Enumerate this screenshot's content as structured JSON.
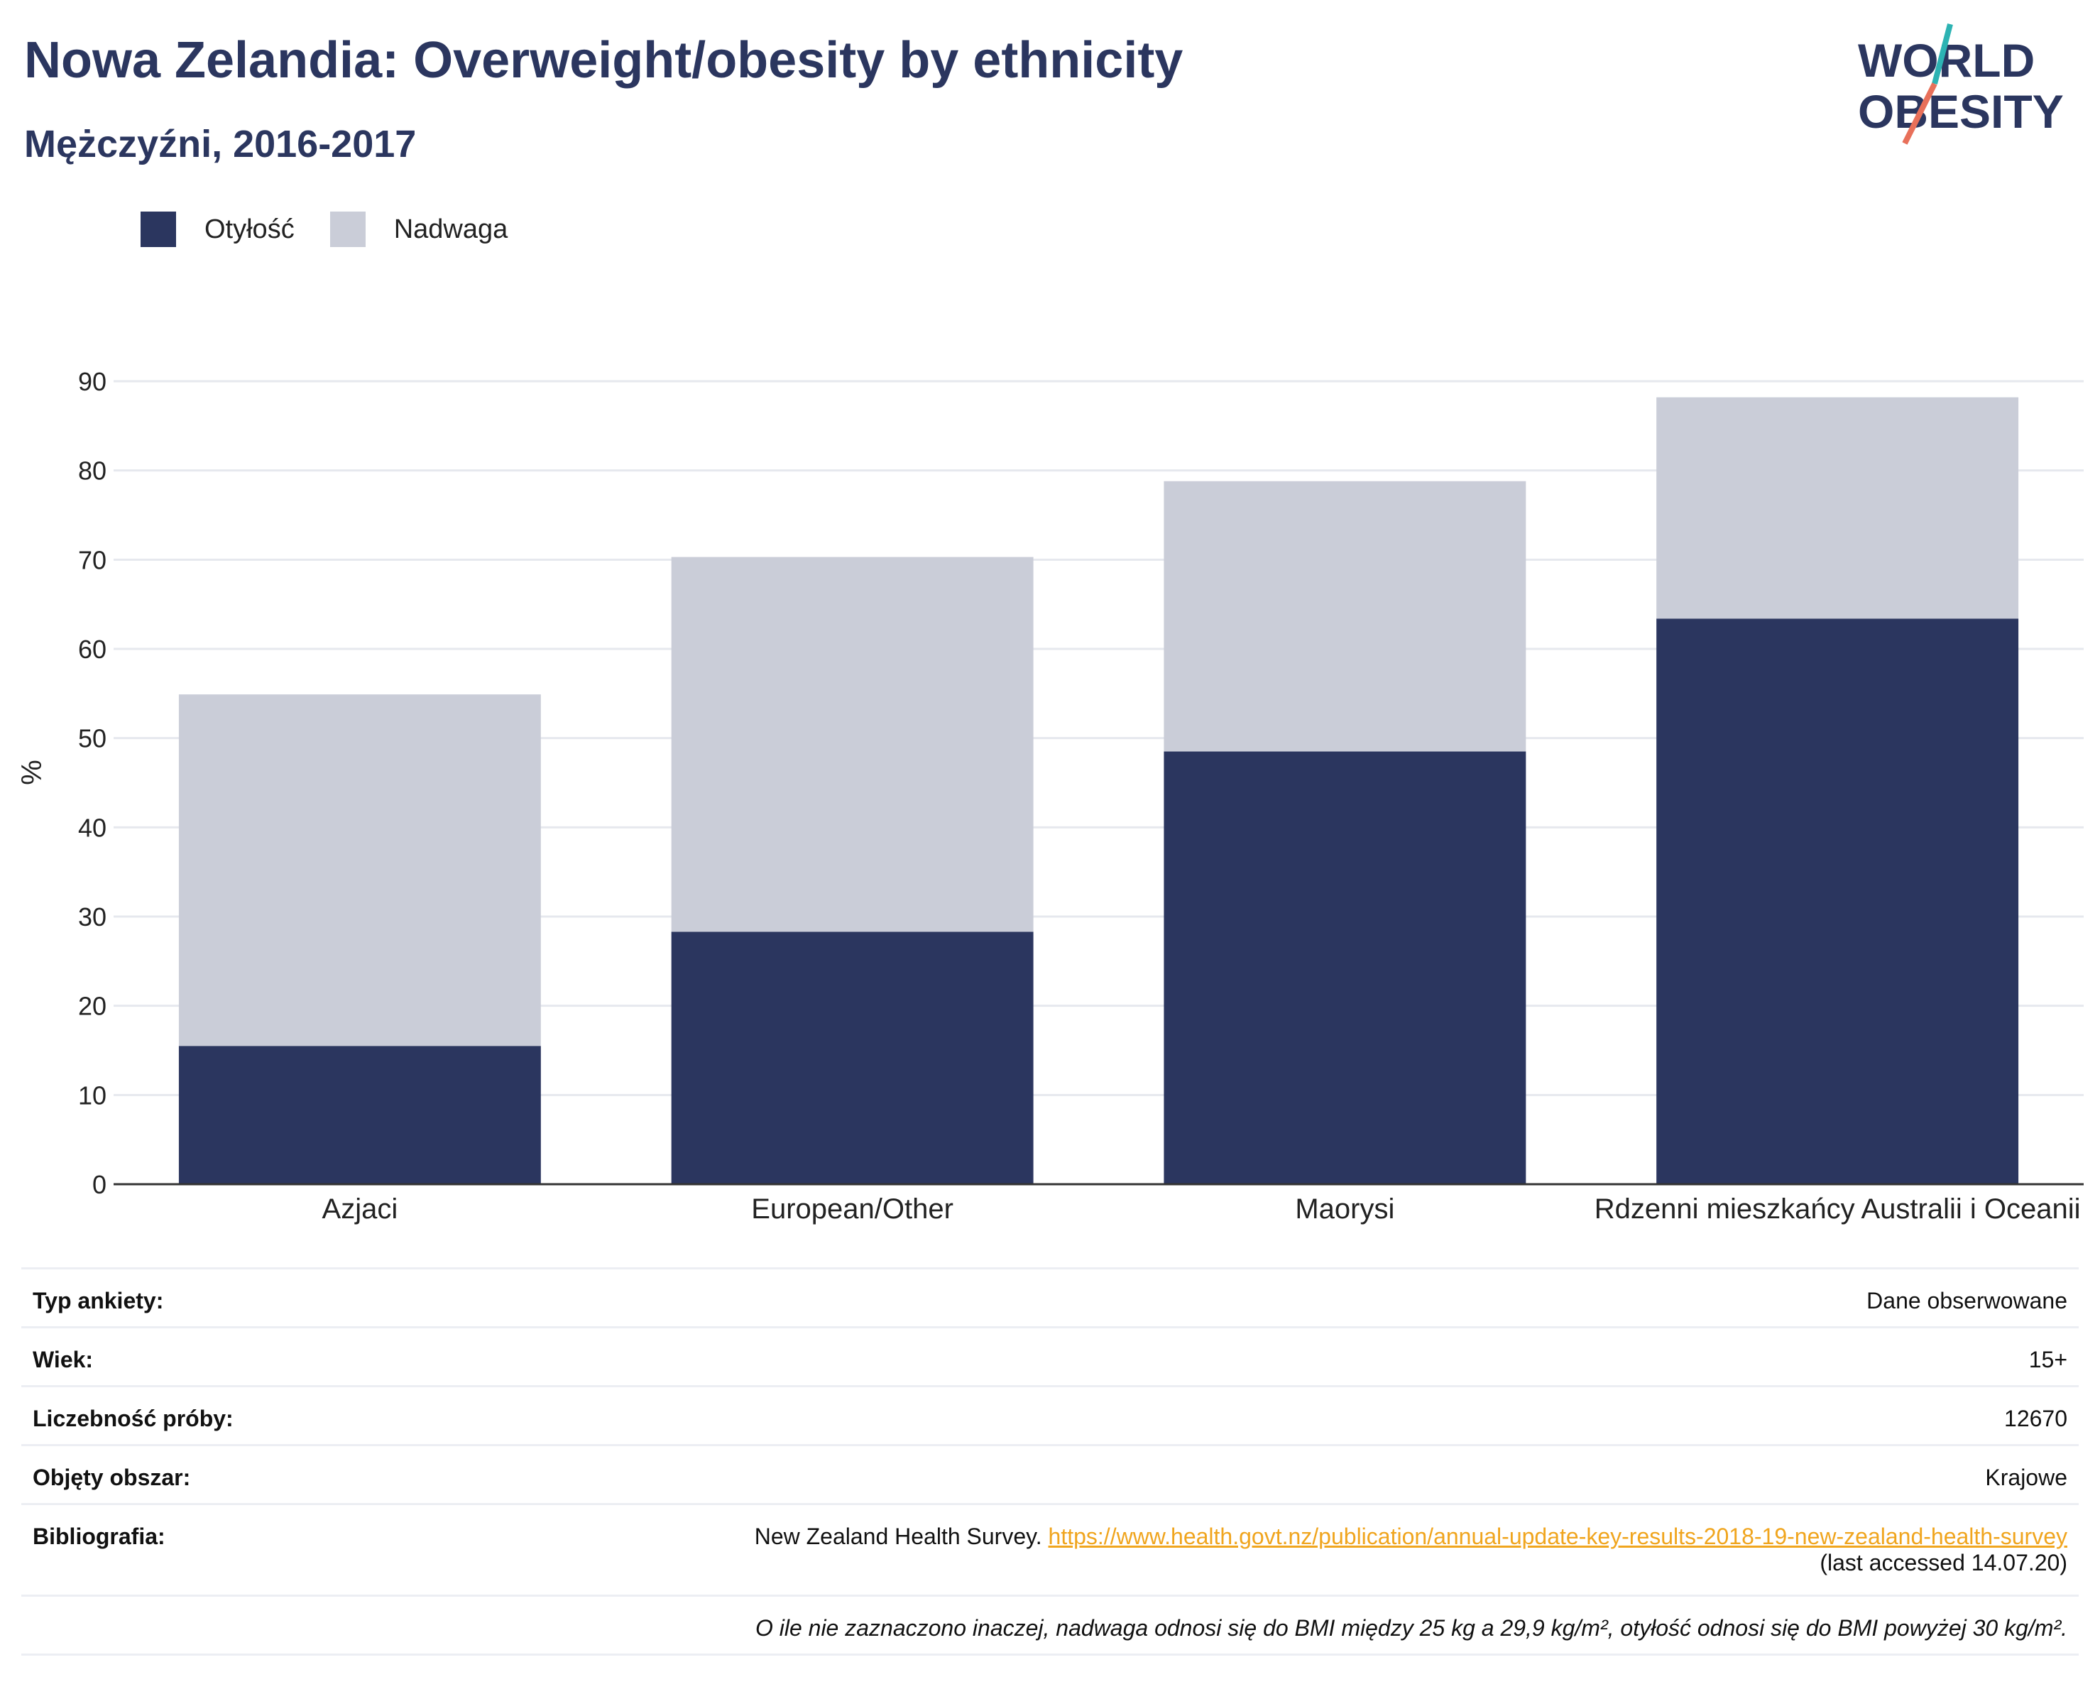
{
  "title": "Nowa Zelandia: Overweight/obesity by ethnicity",
  "subtitle": "Mężczyźni, 2016-2017",
  "logo": {
    "line1": "WORLD",
    "line2": "OBESITY"
  },
  "colors": {
    "obesity": "#2b365f",
    "overweight": "#cacdd8",
    "title": "#2b365f",
    "link": "#f0a51e"
  },
  "legend": {
    "obesity_label": "Otyłość",
    "overweight_label": "Nadwaga"
  },
  "chart_data": {
    "type": "bar",
    "stacked": true,
    "categories": [
      "Azjaci",
      "European/Other",
      "Maorysi",
      "Rdzenni mieszkańcy Australii i Oceanii"
    ],
    "series": [
      {
        "name": "Otyłość",
        "values": [
          15.5,
          28.3,
          48.5,
          63.4
        ]
      },
      {
        "name": "Nadwaga",
        "values": [
          39.4,
          42.0,
          30.3,
          24.8
        ]
      }
    ],
    "ylabel": "%",
    "ylim": [
      0,
      90
    ],
    "yticks": [
      0,
      10,
      20,
      30,
      40,
      50,
      60,
      70,
      80,
      90
    ],
    "grid": true,
    "legend_position": "top-left"
  },
  "meta": {
    "survey_type": {
      "label": "Typ ankiety:",
      "value": "Dane obserwowane"
    },
    "age": {
      "label": "Wiek:",
      "value": "15+"
    },
    "sample_size": {
      "label": "Liczebność próby:",
      "value": "12670"
    },
    "coverage": {
      "label": "Objęty obszar:",
      "value": "Krajowe"
    },
    "bibliography": {
      "label": "Bibliografia:",
      "source": "New Zealand Health Survey.",
      "url": "https://www.health.govt.nz/publication/annual-update-key-results-2018-19-new-zealand-health-survey",
      "accessed": "(last accessed 14.07.20)"
    },
    "note": "O ile nie zaznaczono inaczej, nadwaga odnosi się do BMI między 25 kg a 29,9 kg/m², otyłość odnosi się do BMI powyżej 30 kg/m²."
  }
}
